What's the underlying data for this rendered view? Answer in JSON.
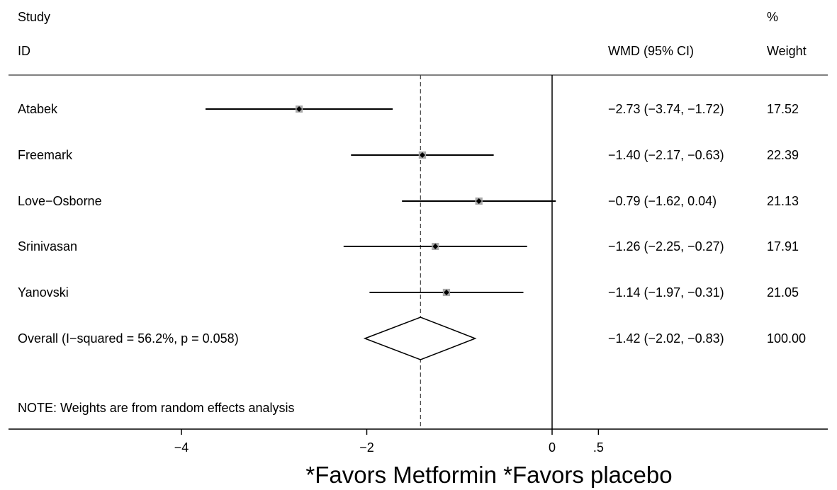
{
  "header": {
    "study_label_line1": "Study",
    "study_label_line2": "ID",
    "effect_label": "WMD (95% CI)",
    "weight_label_line1": "%",
    "weight_label_line2": "Weight"
  },
  "note": "NOTE: Weights are from random effects analysis",
  "xlabel": "*Favors Metformin *Favors placebo",
  "colors": {
    "line": "#000000",
    "box": "#a9a9a9",
    "diamond_fill": "#ffffff"
  },
  "chart_data": {
    "type": "forest",
    "measure": "WMD",
    "x_ticks": [
      {
        "value": -4,
        "label": "−4"
      },
      {
        "value": -2,
        "label": "−2"
      },
      {
        "value": 0,
        "label": "0"
      },
      {
        "value": 0.5,
        "label": ".5"
      }
    ],
    "xlim": [
      -6,
      3.1
    ],
    "null_line": 0,
    "studies": [
      {
        "name": "Atabek",
        "estimate": -2.73,
        "lower": -3.74,
        "upper": -1.72,
        "ci_text": "−2.73 (−3.74, −1.72)",
        "weight": 17.52,
        "weight_text": "17.52"
      },
      {
        "name": "Freemark",
        "estimate": -1.4,
        "lower": -2.17,
        "upper": -0.63,
        "ci_text": "−1.40 (−2.17, −0.63)",
        "weight": 22.39,
        "weight_text": "22.39"
      },
      {
        "name": "Love−Osborne",
        "estimate": -0.79,
        "lower": -1.62,
        "upper": 0.04,
        "ci_text": "−0.79 (−1.62, 0.04)",
        "weight": 21.13,
        "weight_text": "21.13"
      },
      {
        "name": "Srinivasan",
        "estimate": -1.26,
        "lower": -2.25,
        "upper": -0.27,
        "ci_text": "−1.26 (−2.25, −0.27)",
        "weight": 17.91,
        "weight_text": "17.91"
      },
      {
        "name": "Yanovski",
        "estimate": -1.14,
        "lower": -1.97,
        "upper": -0.31,
        "ci_text": "−1.14 (−1.97, −0.31)",
        "weight": 21.05,
        "weight_text": "21.05"
      }
    ],
    "overall": {
      "name": "Overall  (I−squared = 56.2%, p = 0.058)",
      "estimate": -1.42,
      "lower": -2.02,
      "upper": -0.83,
      "ci_text": "−1.42 (−2.02, −0.83)",
      "weight": 100.0,
      "weight_text": "100.00"
    }
  }
}
